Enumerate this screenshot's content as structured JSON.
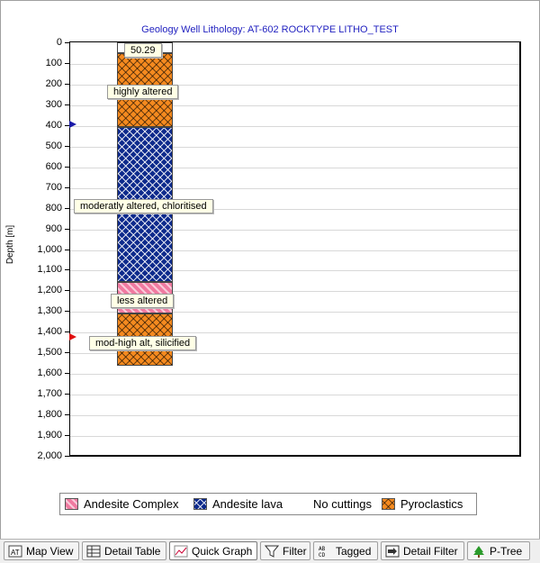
{
  "chart_data": {
    "type": "table",
    "title": "Geology Well Lithology:  AT-602 ROCKTYPE LITHO_TEST",
    "ylabel": "Depth [m]",
    "ylim": [
      0,
      2000
    ],
    "y_ticks": [
      "0",
      "100",
      "200",
      "300",
      "400",
      "500",
      "600",
      "700",
      "800",
      "900",
      "1,000",
      "1,100",
      "1,200",
      "1,300",
      "1,400",
      "1,500",
      "1,600",
      "1,700",
      "1,800",
      "1,900",
      "2,000"
    ],
    "intervals": [
      {
        "from": 0,
        "to": 50.29,
        "lithology": "No cuttings"
      },
      {
        "from": 50.29,
        "to": 410,
        "lithology": "Pyroclastics"
      },
      {
        "from": 410,
        "to": 1160,
        "lithology": "Andesite lava"
      },
      {
        "from": 1160,
        "to": 1310,
        "lithology": "Andesite Complex"
      },
      {
        "from": 1310,
        "to": 1565,
        "lithology": "Pyroclastics"
      }
    ],
    "annotations": [
      {
        "text": "50.29",
        "depth": 38
      },
      {
        "text": "highly altered",
        "depth": 240
      },
      {
        "text": "moderatly altered, chloritised",
        "depth": 795
      },
      {
        "text": "less altered",
        "depth": 1250
      },
      {
        "text": "mod-high alt, silicified",
        "depth": 1455
      }
    ],
    "markers": [
      {
        "depth": 395,
        "color": "#1a1aa8"
      },
      {
        "depth": 1425,
        "color": "#e01010"
      }
    ],
    "grid": true,
    "legend_position": "bottom"
  },
  "legend": [
    {
      "label": "Andesite Complex",
      "pattern": "ande"
    },
    {
      "label": "Andesite lava",
      "pattern": "lava"
    },
    {
      "label": "No cuttings",
      "pattern": "none"
    },
    {
      "label": "Pyroclastics",
      "pattern": "pyro"
    }
  ],
  "tabs": [
    {
      "label": "Map View",
      "icon": "map-view-icon",
      "active": false
    },
    {
      "label": "Detail Table",
      "icon": "table-icon",
      "active": false
    },
    {
      "label": "Quick Graph",
      "icon": "graph-icon",
      "active": true
    },
    {
      "label": "Filter",
      "icon": "filter-icon",
      "active": false
    },
    {
      "label": "Tagged",
      "icon": "tagged-icon",
      "active": false
    },
    {
      "label": "Detail Filter",
      "icon": "detail-filter-icon",
      "active": false
    },
    {
      "label": "P-Tree",
      "icon": "tree-icon",
      "active": false
    }
  ]
}
